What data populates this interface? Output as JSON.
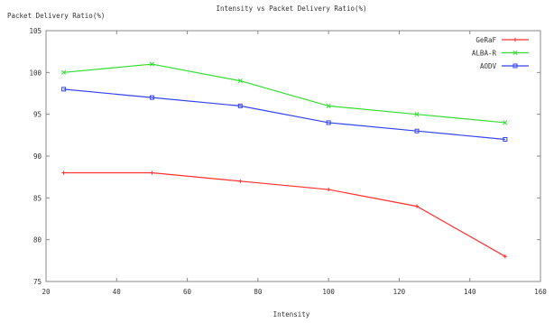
{
  "chart_data": {
    "type": "line",
    "title": "Intensity vs Packet Delivery Ratio(%)",
    "xlabel": "Intensity",
    "ylabel": "Packet Delivery Ratio(%)",
    "xlim": [
      20,
      160
    ],
    "ylim": [
      75,
      105
    ],
    "xticks": [
      20,
      40,
      60,
      80,
      100,
      120,
      140,
      160
    ],
    "yticks": [
      75,
      80,
      85,
      90,
      95,
      100,
      105
    ],
    "grid": false,
    "legend_position": "top-right",
    "x": [
      25,
      50,
      75,
      100,
      125,
      150
    ],
    "series": [
      {
        "name": "GeRaF",
        "color": "#ff3030",
        "marker": "plus",
        "values": [
          88,
          88,
          87,
          86,
          84,
          78
        ]
      },
      {
        "name": "ALBA-R",
        "color": "#33dd33",
        "marker": "x",
        "values": [
          100,
          101,
          99,
          96,
          95,
          94
        ]
      },
      {
        "name": "AODV",
        "color": "#3344ee",
        "marker": "square",
        "values": [
          98,
          97,
          96,
          94,
          93,
          92
        ]
      }
    ]
  }
}
